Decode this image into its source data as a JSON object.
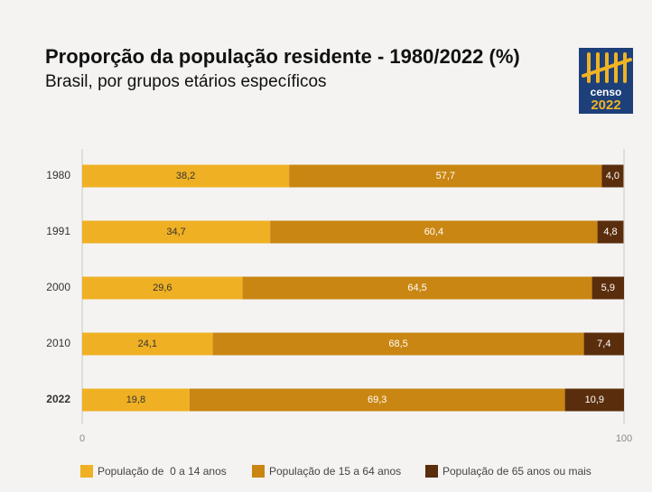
{
  "chart_data": {
    "type": "stacked-bar-horizontal",
    "title": "Proporção da população residente - 1980/2022 (%)",
    "subtitle": "Brasil, por grupos etários específicos",
    "logo": {
      "word": "censo",
      "year": "2022"
    },
    "categories": [
      "1980",
      "1991",
      "2000",
      "2010",
      "2022"
    ],
    "series": [
      {
        "name": "População de  0 a 14 anos",
        "color": "#efb024",
        "label_color": "#333333",
        "values": [
          38.2,
          34.7,
          29.6,
          24.1,
          19.8
        ],
        "value_labels": [
          "38,2",
          "34,7",
          "29,6",
          "24,1",
          "19,8"
        ]
      },
      {
        "name": "População de 15 a 64 anos",
        "color": "#c98612",
        "label_color": "#ffffff",
        "values": [
          57.7,
          60.4,
          64.5,
          68.5,
          69.3
        ],
        "value_labels": [
          "57,7",
          "60,4",
          "64,5",
          "68,5",
          "69,3"
        ]
      },
      {
        "name": "População de 65 anos ou mais",
        "color": "#5a2d0c",
        "label_color": "#ffffff",
        "values": [
          4.0,
          4.8,
          5.9,
          7.4,
          10.9
        ],
        "value_labels": [
          "4,0",
          "4,8",
          "5,9",
          "7,4",
          "10,9"
        ]
      }
    ],
    "xlim": [
      0,
      100
    ],
    "xticks": [
      0,
      100
    ],
    "grid": true
  }
}
